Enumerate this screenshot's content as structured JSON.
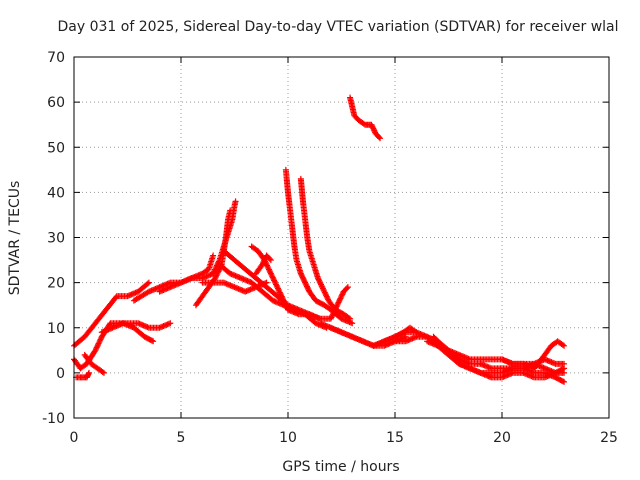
{
  "chart_data": {
    "type": "scatter",
    "title": "Day 031 of 2025, Sidereal Day-to-day VTEC variation (SDTVAR) for receiver wlal",
    "xlabel": "GPS time / hours",
    "ylabel": "SDTVAR / TECUs",
    "xlim": [
      0,
      25
    ],
    "ylim": [
      -10,
      70
    ],
    "xticks": [
      0,
      5,
      10,
      15,
      20,
      25
    ],
    "yticks": [
      -10,
      0,
      10,
      20,
      30,
      40,
      50,
      60,
      70
    ],
    "grid": true,
    "marker": "+",
    "color": "#ff0000",
    "series": [
      {
        "name": "s1",
        "points": [
          [
            0.0,
            6
          ],
          [
            0.5,
            8
          ],
          [
            1.0,
            11
          ],
          [
            1.5,
            14
          ],
          [
            2.0,
            17
          ],
          [
            2.5,
            17
          ],
          [
            3.0,
            18
          ],
          [
            3.5,
            20
          ]
        ]
      },
      {
        "name": "s2",
        "points": [
          [
            0.0,
            3
          ],
          [
            0.3,
            1
          ],
          [
            0.6,
            2
          ],
          [
            1.0,
            5
          ],
          [
            1.3,
            8
          ],
          [
            1.7,
            11
          ],
          [
            2.2,
            11
          ],
          [
            3.0,
            11
          ],
          [
            3.5,
            10
          ],
          [
            4.0,
            10
          ],
          [
            4.5,
            11
          ]
        ]
      },
      {
        "name": "s3",
        "points": [
          [
            0.1,
            -1
          ],
          [
            0.3,
            -1
          ],
          [
            0.6,
            -1
          ],
          [
            0.7,
            0
          ]
        ]
      },
      {
        "name": "s4",
        "points": [
          [
            0.5,
            4
          ],
          [
            0.8,
            2
          ],
          [
            1.1,
            1
          ],
          [
            1.4,
            0
          ]
        ]
      },
      {
        "name": "s5",
        "points": [
          [
            1.3,
            9
          ],
          [
            1.8,
            10
          ],
          [
            2.3,
            11
          ],
          [
            2.8,
            10
          ],
          [
            3.3,
            8
          ],
          [
            3.7,
            7
          ]
        ]
      },
      {
        "name": "s6",
        "points": [
          [
            2.8,
            16
          ],
          [
            3.5,
            18
          ],
          [
            4.0,
            19
          ],
          [
            4.5,
            20
          ],
          [
            5.0,
            20
          ],
          [
            5.5,
            21
          ],
          [
            6.0,
            21
          ],
          [
            6.5,
            22
          ]
        ]
      },
      {
        "name": "s7",
        "points": [
          [
            4.0,
            18
          ],
          [
            4.5,
            19
          ],
          [
            5.0,
            20
          ],
          [
            5.5,
            21
          ],
          [
            6.0,
            22
          ],
          [
            6.3,
            23
          ],
          [
            6.5,
            26
          ]
        ]
      },
      {
        "name": "s8",
        "points": [
          [
            5.7,
            15
          ],
          [
            6.0,
            17
          ],
          [
            6.3,
            19
          ],
          [
            6.6,
            21
          ],
          [
            6.9,
            24
          ],
          [
            7.1,
            30
          ],
          [
            7.2,
            34
          ],
          [
            7.3,
            36
          ]
        ]
      },
      {
        "name": "s9",
        "points": [
          [
            6.5,
            22
          ],
          [
            6.8,
            25
          ],
          [
            7.0,
            28
          ],
          [
            7.2,
            31
          ],
          [
            7.4,
            34
          ],
          [
            7.5,
            37
          ],
          [
            7.55,
            38
          ]
        ]
      },
      {
        "name": "s10",
        "points": [
          [
            6.0,
            20
          ],
          [
            6.5,
            20
          ],
          [
            7.0,
            20
          ],
          [
            7.5,
            19
          ],
          [
            8.0,
            18
          ],
          [
            8.5,
            19
          ],
          [
            9.0,
            20
          ]
        ]
      },
      {
        "name": "s11",
        "points": [
          [
            7.0,
            27
          ],
          [
            7.5,
            25
          ],
          [
            8.0,
            23
          ],
          [
            8.5,
            21
          ],
          [
            9.0,
            19
          ],
          [
            9.5,
            17
          ],
          [
            10.0,
            15
          ],
          [
            10.5,
            14
          ],
          [
            11.0,
            13
          ],
          [
            11.5,
            12
          ]
        ]
      },
      {
        "name": "s12",
        "points": [
          [
            6.8,
            24
          ],
          [
            7.3,
            22
          ],
          [
            7.8,
            21
          ],
          [
            8.3,
            20
          ],
          [
            8.8,
            18
          ],
          [
            9.3,
            16
          ],
          [
            9.8,
            15
          ],
          [
            10.3,
            14
          ],
          [
            10.8,
            13
          ],
          [
            11.3,
            11
          ],
          [
            11.8,
            10
          ]
        ]
      },
      {
        "name": "s13",
        "points": [
          [
            8.3,
            28
          ],
          [
            8.6,
            27
          ],
          [
            8.9,
            25
          ],
          [
            9.2,
            22
          ],
          [
            9.5,
            19
          ],
          [
            9.8,
            16
          ],
          [
            10.0,
            14
          ]
        ]
      },
      {
        "name": "s14",
        "points": [
          [
            8.5,
            22
          ],
          [
            8.8,
            24
          ],
          [
            9.0,
            26
          ],
          [
            9.2,
            25
          ]
        ]
      },
      {
        "name": "s15",
        "points": [
          [
            9.9,
            45
          ],
          [
            10.0,
            40
          ],
          [
            10.1,
            36
          ],
          [
            10.2,
            32
          ],
          [
            10.3,
            28
          ],
          [
            10.4,
            25
          ],
          [
            10.6,
            22
          ],
          [
            10.8,
            20
          ],
          [
            11.0,
            18
          ],
          [
            11.3,
            16
          ],
          [
            11.7,
            15
          ],
          [
            12.0,
            14
          ],
          [
            12.5,
            12
          ],
          [
            13.0,
            11
          ]
        ]
      },
      {
        "name": "s16",
        "points": [
          [
            10.6,
            43
          ],
          [
            10.7,
            38
          ],
          [
            10.8,
            34
          ],
          [
            10.9,
            30
          ],
          [
            11.0,
            27
          ],
          [
            11.2,
            24
          ],
          [
            11.4,
            21
          ],
          [
            11.6,
            19
          ],
          [
            11.9,
            16
          ],
          [
            12.2,
            14
          ],
          [
            12.6,
            13
          ],
          [
            12.9,
            12
          ]
        ]
      },
      {
        "name": "s17",
        "points": [
          [
            10.0,
            14
          ],
          [
            10.5,
            13
          ],
          [
            11.0,
            13
          ],
          [
            11.5,
            12
          ],
          [
            12.0,
            12
          ],
          [
            12.3,
            15
          ],
          [
            12.6,
            18
          ],
          [
            12.8,
            19
          ]
        ]
      },
      {
        "name": "s18",
        "points": [
          [
            11.5,
            11
          ],
          [
            12.0,
            10
          ],
          [
            12.5,
            9
          ],
          [
            13.0,
            8
          ],
          [
            13.5,
            7
          ],
          [
            14.0,
            6
          ],
          [
            14.5,
            6
          ],
          [
            15.0,
            7
          ],
          [
            15.5,
            8
          ]
        ]
      },
      {
        "name": "s19",
        "points": [
          [
            12.0,
            10
          ],
          [
            12.5,
            9
          ],
          [
            13.0,
            8
          ],
          [
            13.5,
            7
          ],
          [
            14.0,
            6
          ],
          [
            14.5,
            7
          ],
          [
            15.0,
            8
          ],
          [
            15.5,
            9
          ],
          [
            16.0,
            9
          ]
        ]
      },
      {
        "name": "s20",
        "points": [
          [
            12.9,
            61
          ],
          [
            13.0,
            59
          ],
          [
            13.1,
            57
          ],
          [
            13.3,
            56
          ],
          [
            13.6,
            55
          ],
          [
            13.9,
            55
          ],
          [
            14.1,
            53
          ],
          [
            14.3,
            52
          ]
        ]
      },
      {
        "name": "s21",
        "points": [
          [
            14.0,
            6
          ],
          [
            14.5,
            7
          ],
          [
            15.0,
            8
          ],
          [
            15.4,
            9
          ],
          [
            15.7,
            10
          ],
          [
            16.0,
            9
          ],
          [
            16.5,
            8
          ],
          [
            17.0,
            7
          ],
          [
            17.5,
            5
          ],
          [
            18.0,
            3
          ],
          [
            18.5,
            2
          ],
          [
            19.0,
            2
          ],
          [
            19.5,
            1
          ],
          [
            20.0,
            1
          ],
          [
            20.5,
            1
          ],
          [
            21.0,
            1
          ],
          [
            21.5,
            0
          ],
          [
            22.0,
            0
          ],
          [
            22.5,
            -1
          ],
          [
            22.9,
            -2
          ]
        ]
      },
      {
        "name": "s22",
        "points": [
          [
            15.0,
            7
          ],
          [
            15.5,
            7
          ],
          [
            16.0,
            8
          ],
          [
            16.5,
            8
          ],
          [
            17.0,
            6
          ],
          [
            17.5,
            4
          ],
          [
            18.0,
            2
          ],
          [
            18.5,
            1
          ],
          [
            19.0,
            0
          ],
          [
            19.5,
            0
          ],
          [
            20.0,
            0
          ],
          [
            20.5,
            1
          ],
          [
            21.0,
            1
          ],
          [
            21.5,
            2
          ],
          [
            22.0,
            1
          ],
          [
            22.5,
            0
          ],
          [
            22.9,
            1
          ]
        ]
      },
      {
        "name": "s23",
        "points": [
          [
            16.5,
            7
          ],
          [
            17.0,
            6
          ],
          [
            17.5,
            5
          ],
          [
            18.0,
            4
          ],
          [
            18.5,
            3
          ],
          [
            19.0,
            3
          ],
          [
            19.5,
            3
          ],
          [
            20.0,
            3
          ],
          [
            20.5,
            2
          ],
          [
            21.0,
            2
          ],
          [
            21.5,
            2
          ],
          [
            22.0,
            3
          ],
          [
            22.5,
            2
          ],
          [
            22.9,
            2
          ]
        ]
      },
      {
        "name": "s24",
        "points": [
          [
            16.8,
            8
          ],
          [
            17.2,
            6
          ],
          [
            17.6,
            4
          ],
          [
            18.0,
            2
          ],
          [
            18.5,
            1
          ],
          [
            19.0,
            0
          ],
          [
            19.5,
            -1
          ],
          [
            20.0,
            -1
          ],
          [
            20.5,
            0
          ],
          [
            21.0,
            0
          ],
          [
            21.5,
            -1
          ],
          [
            22.0,
            -1
          ],
          [
            22.5,
            0
          ],
          [
            22.9,
            0
          ]
        ]
      },
      {
        "name": "s25",
        "points": [
          [
            20.0,
            3
          ],
          [
            20.5,
            2
          ],
          [
            21.0,
            2
          ],
          [
            21.5,
            1
          ],
          [
            22.0,
            4
          ],
          [
            22.3,
            6
          ],
          [
            22.6,
            7
          ],
          [
            22.9,
            6
          ]
        ]
      }
    ]
  }
}
